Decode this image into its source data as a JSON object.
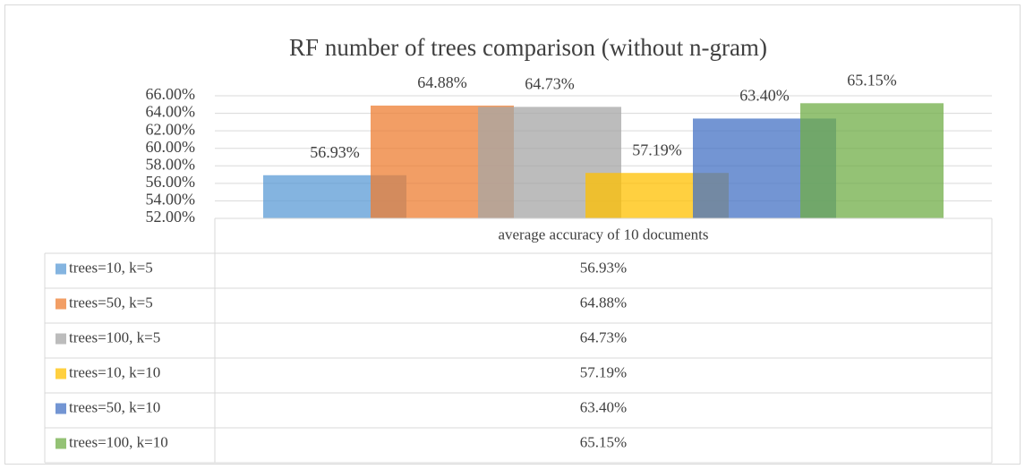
{
  "chart_data": {
    "type": "bar",
    "title": "RF number of trees comparison (without n-gram)",
    "categories": [
      "average accuracy of 10 documents"
    ],
    "series": [
      {
        "name": "trees=10, k=5",
        "color": "#5b9bd5",
        "values": [
          56.93
        ],
        "value_labels": [
          "56.93%"
        ]
      },
      {
        "name": "trees=50, k=5",
        "color": "#ed7d31",
        "values": [
          64.88
        ],
        "value_labels": [
          "64.88%"
        ]
      },
      {
        "name": "trees=100, k=5",
        "color": "#a5a5a5",
        "values": [
          64.73
        ],
        "value_labels": [
          "64.73%"
        ]
      },
      {
        "name": "trees=10, k=10",
        "color": "#ffc000",
        "values": [
          57.19
        ],
        "value_labels": [
          "57.19%"
        ]
      },
      {
        "name": "trees=50, k=10",
        "color": "#4472c4",
        "values": [
          63.4
        ],
        "value_labels": [
          "63.40%"
        ]
      },
      {
        "name": "trees=100, k=10",
        "color": "#70ad47",
        "values": [
          65.15
        ],
        "value_labels": [
          "65.15%"
        ]
      }
    ],
    "ylim": [
      52,
      66
    ],
    "yticks": [
      {
        "value": 52,
        "label": "52.00%"
      },
      {
        "value": 54,
        "label": "54.00%"
      },
      {
        "value": 56,
        "label": "56.00%"
      },
      {
        "value": 58,
        "label": "58.00%"
      },
      {
        "value": 60,
        "label": "60.00%"
      },
      {
        "value": 62,
        "label": "62.00%"
      },
      {
        "value": 64,
        "label": "64.00%"
      },
      {
        "value": 66,
        "label": "66.00%"
      }
    ],
    "grid": true
  }
}
